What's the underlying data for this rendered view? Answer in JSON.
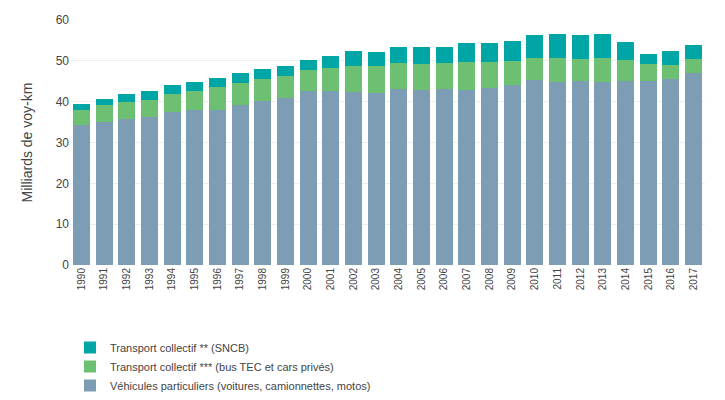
{
  "chart_data": {
    "type": "bar",
    "stacked": true,
    "categories": [
      "1990",
      "1991",
      "1992",
      "1993",
      "1994",
      "1995",
      "1996",
      "1997",
      "1998",
      "1999",
      "2000",
      "2001",
      "2002",
      "2003",
      "2004",
      "2005",
      "2006",
      "2007",
      "2008",
      "2009",
      "2010",
      "2011",
      "2012",
      "2013",
      "2014",
      "2015",
      "2016",
      "2017"
    ],
    "series": [
      {
        "name": "Véhicules particuliers (voitures, camionnettes, motos)",
        "color": "#7d9db5",
        "values": [
          34.2,
          35.1,
          35.8,
          36.2,
          37.5,
          38.0,
          38.0,
          39.2,
          40.2,
          41.0,
          42.5,
          42.7,
          42.3,
          42.2,
          43.0,
          42.8,
          43.0,
          42.8,
          43.3,
          44.2,
          45.3,
          44.7,
          45.0,
          44.8,
          45.0,
          45.0,
          45.6,
          47.0
        ]
      },
      {
        "name": "Transport collectif *** (bus TEC et cars privés)",
        "color": "#6dbf72",
        "values": [
          3.8,
          4.0,
          4.2,
          4.3,
          4.4,
          4.5,
          5.5,
          5.3,
          5.3,
          5.3,
          5.3,
          5.6,
          6.5,
          6.5,
          6.5,
          6.5,
          6.5,
          7.0,
          6.5,
          5.8,
          5.5,
          6.0,
          5.5,
          6.0,
          5.2,
          4.2,
          3.5,
          3.5
        ]
      },
      {
        "name": "Transport collectif ** (SNCB)",
        "color": "#00a5a5",
        "values": [
          1.5,
          1.6,
          1.8,
          2.0,
          2.3,
          2.4,
          2.4,
          2.5,
          2.5,
          2.5,
          2.5,
          3.0,
          3.5,
          3.5,
          4.0,
          4.0,
          4.0,
          4.5,
          4.5,
          4.8,
          5.5,
          5.8,
          5.8,
          5.8,
          4.3,
          2.5,
          3.3,
          3.3
        ]
      }
    ],
    "ylabel": "Milliards de voy-km",
    "ylim": [
      0,
      60
    ],
    "yticks": [
      0,
      10,
      20,
      30,
      40,
      50,
      60
    ],
    "grid": true,
    "legend": "lower left"
  }
}
